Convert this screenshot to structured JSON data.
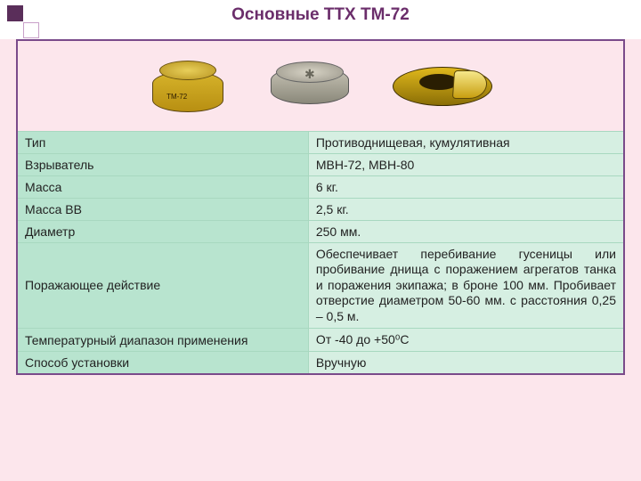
{
  "title": "Основные ТТХ ТМ-72",
  "mine1_label": "ТМ-72",
  "colors": {
    "slide_bg": "#fce6ec",
    "header_bg": "#ffffff",
    "title_color": "#6b2e6b",
    "corner_dark": "#5a2e5a",
    "table_border": "#7a4a8a",
    "cell_border": "#a8d8c0",
    "param_bg": "#b8e4cf",
    "value_bg": "#d6efe2"
  },
  "table": {
    "rows": [
      {
        "param": "Тип",
        "value": "Противоднищевая, кумулятивная"
      },
      {
        "param": "Взрыватель",
        "value": "МВН-72, МВН-80"
      },
      {
        "param": "Масса",
        "value": "6 кг."
      },
      {
        "param": "Масса ВВ",
        "value": "2,5 кг."
      },
      {
        "param": "Диаметр",
        "value": "250 мм."
      },
      {
        "param": "Поражающее действие",
        "value": "Обеспечивает перебивание гусеницы или пробивание днища с поражением агрегатов танка и поражения экипажа; в броне 100 мм. Пробивает отверстие диаметром 50-60 мм. с расстояния 0,25 – 0,5 м.",
        "big": true
      },
      {
        "param": "Температурный диапазон применения",
        "value": "От -40 до +50⁰С"
      },
      {
        "param": "Способ установки",
        "value": "Вручную"
      }
    ]
  },
  "fonts": {
    "title_fontsize": 19,
    "cell_fontsize": 14
  }
}
